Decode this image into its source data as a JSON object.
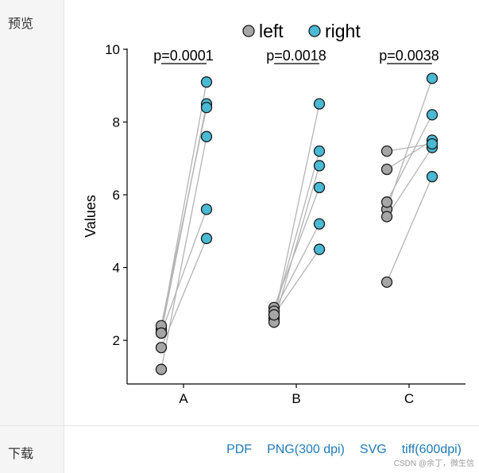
{
  "panel": {
    "preview_label": "预览",
    "download_label": "下载",
    "download_links": [
      "PDF",
      "PNG(300 dpi)",
      "SVG",
      "tiff(600dpi)"
    ],
    "watermark": "CSDN @余丁，微生信"
  },
  "chart_data": {
    "type": "scatter",
    "subtype": "paired-dot",
    "title": "",
    "xlabel": "",
    "ylabel": "Values",
    "categories": [
      "A",
      "B",
      "C"
    ],
    "ylim": [
      0.8,
      10
    ],
    "yticks": [
      2,
      4,
      6,
      8,
      10
    ],
    "grid": false,
    "legend": {
      "position": "top",
      "entries": [
        "left",
        "right"
      ]
    },
    "colors": {
      "left": "#a6a6a6",
      "right": "#4ab9d3",
      "line": "#b3b3b3",
      "edge": "#1a1a1a"
    },
    "series": [
      {
        "name": "left",
        "values": [
          [
            2.3,
            2.2,
            2.4,
            1.2,
            2.2,
            1.8
          ],
          [
            2.6,
            2.7,
            2.5,
            2.9,
            2.8,
            2.7
          ],
          [
            5.6,
            3.6,
            5.8,
            6.7,
            5.4,
            7.2
          ]
        ]
      },
      {
        "name": "right",
        "values": [
          [
            9.1,
            8.5,
            8.4,
            7.6,
            5.6,
            4.8
          ],
          [
            8.5,
            7.2,
            6.8,
            6.2,
            5.2,
            4.5
          ],
          [
            9.2,
            6.5,
            8.2,
            7.5,
            7.3,
            7.4
          ]
        ]
      }
    ],
    "annotations": [
      {
        "category": "A",
        "text": "p=0.0001"
      },
      {
        "category": "B",
        "text": "p=0.0018"
      },
      {
        "category": "C",
        "text": "p=0.0038"
      }
    ]
  }
}
